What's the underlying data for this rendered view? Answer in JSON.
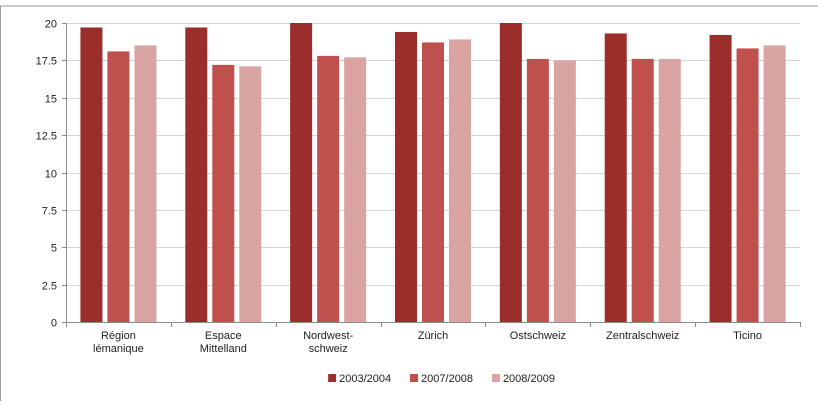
{
  "chart_data": {
    "type": "bar",
    "categories": [
      [
        "Région",
        "lémanique"
      ],
      [
        "Espace",
        "Mittelland"
      ],
      [
        "Nordwest-",
        "schweiz"
      ],
      [
        "Zürich"
      ],
      [
        "Ostschweiz"
      ],
      [
        "Zentralschweiz"
      ],
      [
        "Ticino"
      ]
    ],
    "series": [
      {
        "name": "2003/2004",
        "color": "#9b2d2a",
        "values": [
          19.7,
          19.7,
          20.0,
          19.4,
          20.0,
          19.3,
          19.2
        ]
      },
      {
        "name": "2007/2008",
        "color": "#c0504d",
        "values": [
          18.1,
          17.2,
          17.8,
          18.7,
          17.6,
          17.6,
          18.3
        ]
      },
      {
        "name": "2008/2009",
        "color": "#d9a3a2",
        "values": [
          18.5,
          17.1,
          17.7,
          18.9,
          17.5,
          17.6,
          18.5
        ]
      }
    ],
    "yticks": [
      "0",
      "2.5",
      "5",
      "7.5",
      "10",
      "12.5",
      "15",
      "17.5",
      "20"
    ],
    "ylim": [
      0,
      20
    ],
    "title": "",
    "xlabel": "",
    "ylabel": "",
    "grid": true,
    "legend_position": "bottom-center"
  }
}
